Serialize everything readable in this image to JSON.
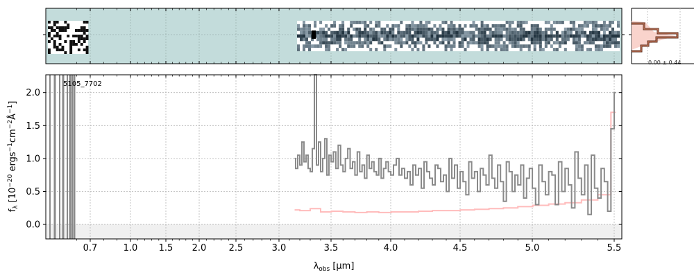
{
  "chart_data": {
    "type": "line",
    "annotation": "5105_7702",
    "ylabel_parts": {
      "main": "f",
      "sub": "λ",
      "rest1": " [10",
      "exp1": "−20",
      "rest2": " ergs",
      "exp2": "−1",
      "rest3": "cm",
      "exp3": "−2",
      "rest4": "Å",
      "exp4": "−1",
      "rest5": "]"
    },
    "xlabel_parts": {
      "main": "λ",
      "sub": "obs",
      "rest": " [μm]"
    },
    "x_ticks": [
      {
        "label": "0.7",
        "value": 0.7
      },
      {
        "label": "1.0",
        "value": 1.0
      },
      {
        "label": "1.5",
        "value": 1.5
      },
      {
        "label": "2.0",
        "value": 2.0
      },
      {
        "label": "2.5",
        "value": 2.5
      },
      {
        "label": "3.0",
        "value": 3.0
      },
      {
        "label": "3.5",
        "value": 3.5
      },
      {
        "label": "4.0",
        "value": 4.0
      },
      {
        "label": "4.5",
        "value": 4.5
      },
      {
        "label": "5.0",
        "value": 5.0
      },
      {
        "label": "5.5",
        "value": 5.5
      }
    ],
    "y_ticks": [
      {
        "label": "0.0",
        "value": 0.0
      },
      {
        "label": "0.5",
        "value": 0.5
      },
      {
        "label": "1.0",
        "value": 1.0
      },
      {
        "label": "1.5",
        "value": 1.5
      },
      {
        "label": "2.0",
        "value": 2.0
      }
    ],
    "xlim": [
      0.5,
      5.52
    ],
    "ylim": [
      -0.22,
      2.27
    ],
    "grid": true,
    "histogram_label": "0.00 ± 0.44",
    "series": [
      {
        "role": "flux",
        "color": "#8a8a8a",
        "x": [
          3.15,
          3.17,
          3.19,
          3.21,
          3.23,
          3.25,
          3.27,
          3.29,
          3.31,
          3.33,
          3.35,
          3.37,
          3.39,
          3.41,
          3.43,
          3.45,
          3.47,
          3.49,
          3.51,
          3.53,
          3.55,
          3.57,
          3.59,
          3.61,
          3.63,
          3.65,
          3.67,
          3.69,
          3.71,
          3.73,
          3.75,
          3.77,
          3.79,
          3.81,
          3.83,
          3.85,
          3.87,
          3.89,
          3.91,
          3.93,
          3.95,
          3.97,
          3.99,
          4.01,
          4.03,
          4.05,
          4.07,
          4.09,
          4.11,
          4.13,
          4.15,
          4.17,
          4.19,
          4.21,
          4.23,
          4.25,
          4.27,
          4.29,
          4.31,
          4.33,
          4.35,
          4.37,
          4.39,
          4.41,
          4.43,
          4.45,
          4.47,
          4.49,
          4.51,
          4.53,
          4.55,
          4.57,
          4.59,
          4.61,
          4.63,
          4.65,
          4.67,
          4.69,
          4.71,
          4.73,
          4.75,
          4.77,
          4.79,
          4.81,
          4.83,
          4.85,
          4.87,
          4.89,
          4.91,
          4.93,
          4.95,
          4.97,
          4.99,
          5.01,
          5.03,
          5.05,
          5.07,
          5.09,
          5.11,
          5.13,
          5.15,
          5.17,
          5.19,
          5.21,
          5.23,
          5.25,
          5.27,
          5.29,
          5.31,
          5.33,
          5.35,
          5.37,
          5.39,
          5.41,
          5.43,
          5.45,
          5.47,
          5.49,
          5.51
        ],
        "y": [
          1.0,
          0.85,
          1.05,
          0.9,
          1.25,
          0.95,
          1.05,
          0.85,
          0.8,
          1.15,
          2.3,
          0.9,
          1.25,
          0.8,
          1.0,
          1.3,
          0.75,
          1.05,
          0.95,
          1.1,
          0.85,
          1.2,
          0.9,
          0.8,
          1.0,
          1.15,
          0.85,
          0.95,
          0.75,
          1.1,
          0.8,
          0.9,
          0.7,
          1.05,
          0.85,
          0.95,
          0.8,
          0.75,
          1.0,
          0.7,
          0.85,
          0.95,
          0.8,
          0.75,
          0.9,
          1.0,
          0.75,
          0.85,
          0.7,
          0.8,
          0.6,
          0.9,
          0.75,
          0.85,
          0.55,
          0.95,
          0.8,
          0.7,
          0.6,
          0.9,
          0.85,
          0.65,
          0.75,
          0.5,
          1.0,
          0.7,
          0.9,
          0.55,
          0.8,
          0.65,
          0.45,
          0.95,
          0.7,
          0.8,
          0.5,
          0.85,
          0.75,
          0.6,
          1.05,
          0.7,
          0.55,
          0.9,
          0.65,
          0.35,
          0.95,
          0.8,
          0.5,
          0.75,
          0.6,
          0.9,
          0.4,
          0.7,
          0.85,
          0.55,
          0.3,
          0.9,
          0.65,
          0.45,
          0.8,
          0.75,
          0.3,
          0.95,
          0.5,
          0.85,
          0.6,
          0.25,
          1.1,
          0.7,
          0.45,
          0.9,
          0.15,
          1.05,
          0.55,
          0.4,
          0.85,
          0.65,
          0.2,
          1.45,
          2.0
        ]
      },
      {
        "role": "error",
        "color": "#ffbcbc",
        "x": [
          3.15,
          3.25,
          3.35,
          3.45,
          3.55,
          3.65,
          3.75,
          3.85,
          3.95,
          4.05,
          4.15,
          4.25,
          4.35,
          4.45,
          4.55,
          4.65,
          4.75,
          4.85,
          4.95,
          5.05,
          5.15,
          5.25,
          5.35,
          5.45,
          5.51
        ],
        "y": [
          0.22,
          0.21,
          0.24,
          0.19,
          0.2,
          0.19,
          0.18,
          0.19,
          0.18,
          0.19,
          0.19,
          0.2,
          0.21,
          0.21,
          0.22,
          0.23,
          0.24,
          0.25,
          0.27,
          0.29,
          0.31,
          0.33,
          0.37,
          0.45,
          1.7
        ]
      }
    ]
  }
}
